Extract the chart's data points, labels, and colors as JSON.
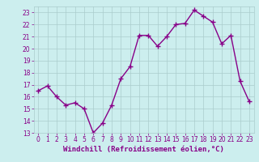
{
  "x": [
    0,
    1,
    2,
    3,
    4,
    5,
    6,
    7,
    8,
    9,
    10,
    11,
    12,
    13,
    14,
    15,
    16,
    17,
    18,
    19,
    20,
    21,
    22,
    23
  ],
  "y": [
    16.5,
    16.9,
    16.0,
    15.3,
    15.5,
    15.0,
    13.0,
    13.8,
    15.3,
    17.5,
    18.5,
    21.1,
    21.1,
    20.2,
    21.0,
    22.0,
    22.1,
    23.2,
    22.7,
    22.2,
    20.4,
    21.1,
    17.3,
    15.6
  ],
  "line_color": "#880088",
  "marker": "+",
  "marker_size": 4,
  "marker_edge_width": 1.0,
  "bg_color": "#cceeee",
  "grid_color": "#aacccc",
  "xlabel": "Windchill (Refroidissement éolien,°C)",
  "ylim": [
    13,
    23.5
  ],
  "xlim": [
    -0.5,
    23.5
  ],
  "yticks": [
    13,
    14,
    15,
    16,
    17,
    18,
    19,
    20,
    21,
    22,
    23
  ],
  "xticks": [
    0,
    1,
    2,
    3,
    4,
    5,
    6,
    7,
    8,
    9,
    10,
    11,
    12,
    13,
    14,
    15,
    16,
    17,
    18,
    19,
    20,
    21,
    22,
    23
  ],
  "tick_label_size": 5.5,
  "xlabel_size": 6.5,
  "line_width": 1.0
}
